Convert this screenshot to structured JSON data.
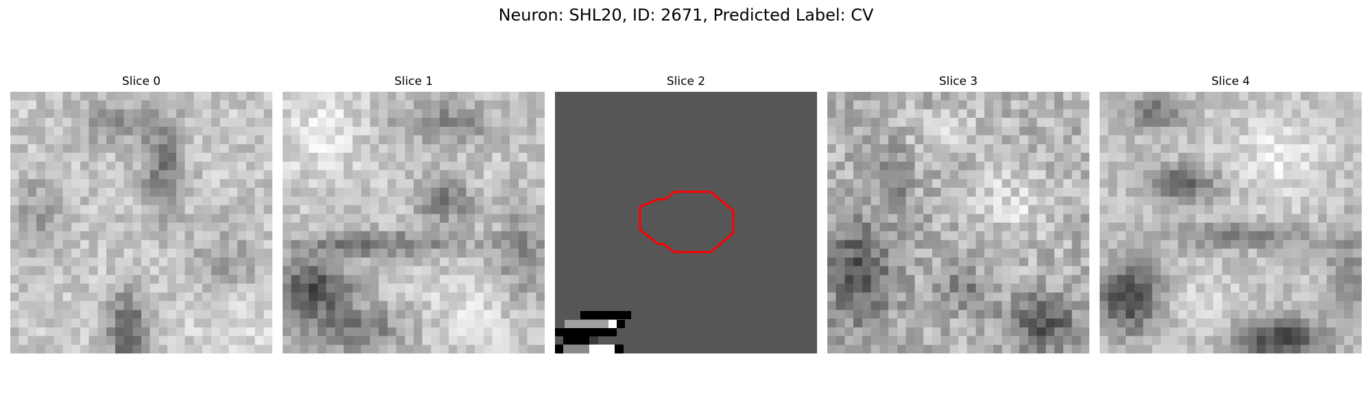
{
  "figure": {
    "title": "Neuron: SHL20, ID: 2671, Predicted Label: CV"
  },
  "slices": [
    {
      "title": "Slice 0",
      "image": "grayscale-em-slice-texture"
    },
    {
      "title": "Slice 1",
      "image": "grayscale-em-slice-texture"
    },
    {
      "title": "Slice 2",
      "image": "gray-slice-with-red-contour",
      "contour_color": "#ff0000",
      "background_color": "#565656"
    },
    {
      "title": "Slice 3",
      "image": "grayscale-em-slice-texture"
    },
    {
      "title": "Slice 4",
      "image": "grayscale-em-slice-texture"
    }
  ]
}
